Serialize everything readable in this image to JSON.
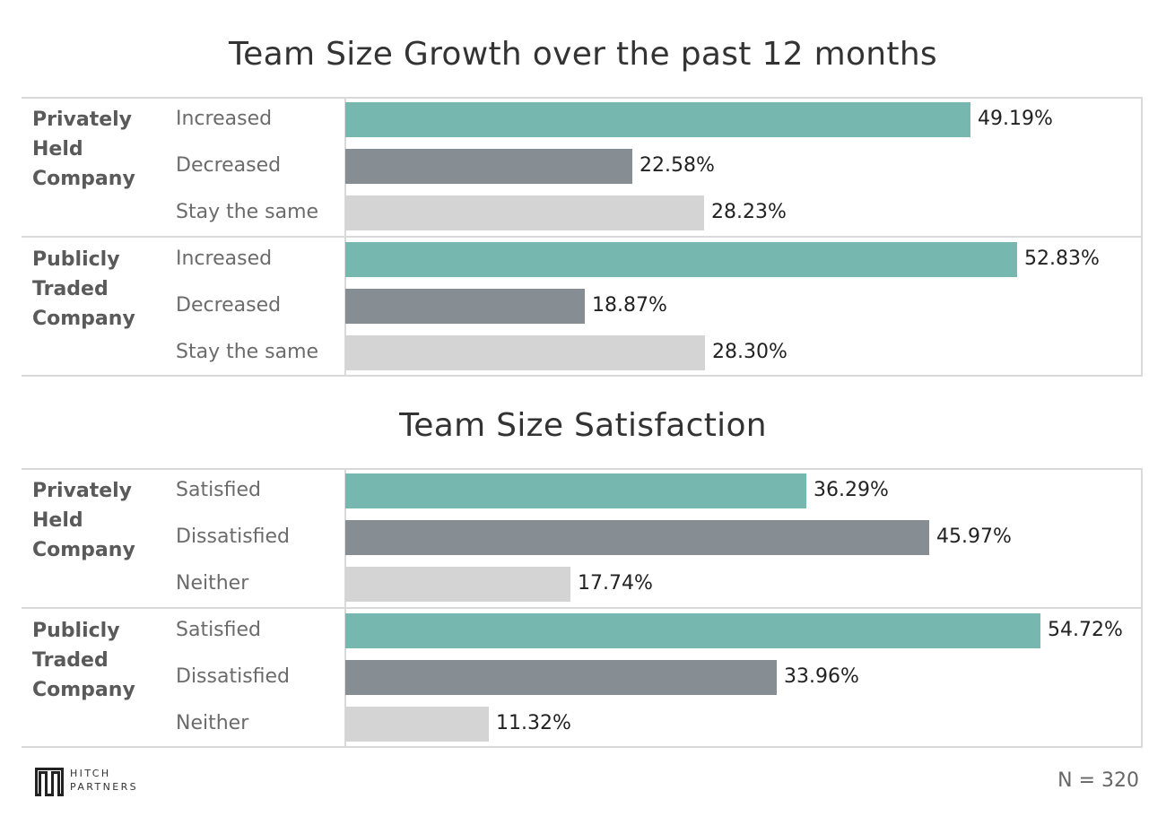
{
  "chart_data": [
    {
      "type": "bar",
      "orientation": "horizontal",
      "title": "Team Size Growth over the past 12 months",
      "groups": [
        {
          "name": "Privately Held Company",
          "name_lines": [
            "Privately",
            "Held",
            "Company"
          ],
          "bars": [
            {
              "category": "Increased",
              "value": 49.19,
              "label": "49.19%",
              "color": "#76b7b0"
            },
            {
              "category": "Decreased",
              "value": 22.58,
              "label": "22.58%",
              "color": "#868d93"
            },
            {
              "category": "Stay the same",
              "value": 28.23,
              "label": "28.23%",
              "color": "#d4d4d4"
            }
          ]
        },
        {
          "name": "Publicly Traded Company",
          "name_lines": [
            "Publicly",
            "Traded",
            "Company"
          ],
          "bars": [
            {
              "category": "Increased",
              "value": 52.83,
              "label": "52.83%",
              "color": "#76b7b0"
            },
            {
              "category": "Decreased",
              "value": 18.87,
              "label": "18.87%",
              "color": "#868d93"
            },
            {
              "category": "Stay the same",
              "value": 28.3,
              "label": "28.30%",
              "color": "#d4d4d4"
            }
          ]
        }
      ],
      "xlim": [
        0,
        62
      ]
    },
    {
      "type": "bar",
      "orientation": "horizontal",
      "title": "Team Size Satisfaction",
      "groups": [
        {
          "name": "Privately Held Company",
          "name_lines": [
            "Privately",
            "Held",
            "Company"
          ],
          "bars": [
            {
              "category": "Satisfied",
              "value": 36.29,
              "label": "36.29%",
              "color": "#76b7b0"
            },
            {
              "category": "Dissatisfied",
              "value": 45.97,
              "label": "45.97%",
              "color": "#868d93"
            },
            {
              "category": "Neither",
              "value": 17.74,
              "label": "17.74%",
              "color": "#d4d4d4"
            }
          ]
        },
        {
          "name": "Publicly Traded Company",
          "name_lines": [
            "Publicly",
            "Traded",
            "Company"
          ],
          "bars": [
            {
              "category": "Satisfied",
              "value": 54.72,
              "label": "54.72%",
              "color": "#76b7b0"
            },
            {
              "category": "Dissatisfied",
              "value": 33.96,
              "label": "33.96%",
              "color": "#868d93"
            },
            {
              "category": "Neither",
              "value": 11.32,
              "label": "11.32%",
              "color": "#d4d4d4"
            }
          ]
        }
      ],
      "xlim": [
        0,
        62
      ]
    }
  ],
  "footer": {
    "sample_size": "N = 320",
    "logo_line1": "HITCH",
    "logo_line2": "PARTNERS"
  }
}
